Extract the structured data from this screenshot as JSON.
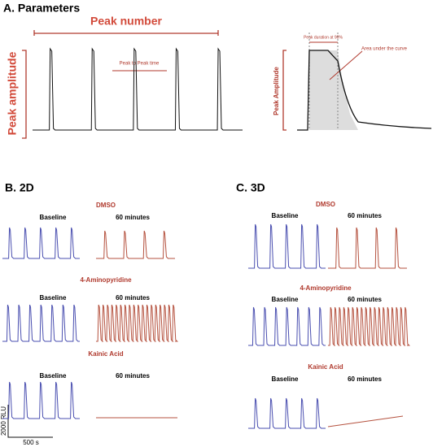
{
  "panel_a": {
    "title": "A. Parameters",
    "peak_number": "Peak number",
    "peak_amplitude": "Peak amplitude",
    "peak_to_peak": "Peak to Peak time",
    "peak_duration": "Peak duration at 90%",
    "area": "Area under the curve",
    "peak_amplitude_right": "Peak Amplitude"
  },
  "panel_b": {
    "title": "B. 2D",
    "groups": [
      {
        "name": "DMSO",
        "baseline": "Baseline",
        "after": "60 minutes"
      },
      {
        "name": "4-Aminopyridine",
        "baseline": "Baseline",
        "after": "60 minutes"
      },
      {
        "name": "Kainic Acid",
        "baseline": "Baseline",
        "after": "60 minutes"
      }
    ]
  },
  "panel_c": {
    "title": "C. 3D",
    "groups": [
      {
        "name": "DMSO",
        "baseline": "Baseline",
        "after": "60 minutes"
      },
      {
        "name": "4-Aminopyridine",
        "baseline": "Baseline",
        "after": "60 minutes"
      },
      {
        "name": "Kainic Acid",
        "baseline": "Baseline",
        "after": "60 minutes"
      }
    ]
  },
  "scale": {
    "y": "2000 RLU",
    "x": "500 s"
  }
}
